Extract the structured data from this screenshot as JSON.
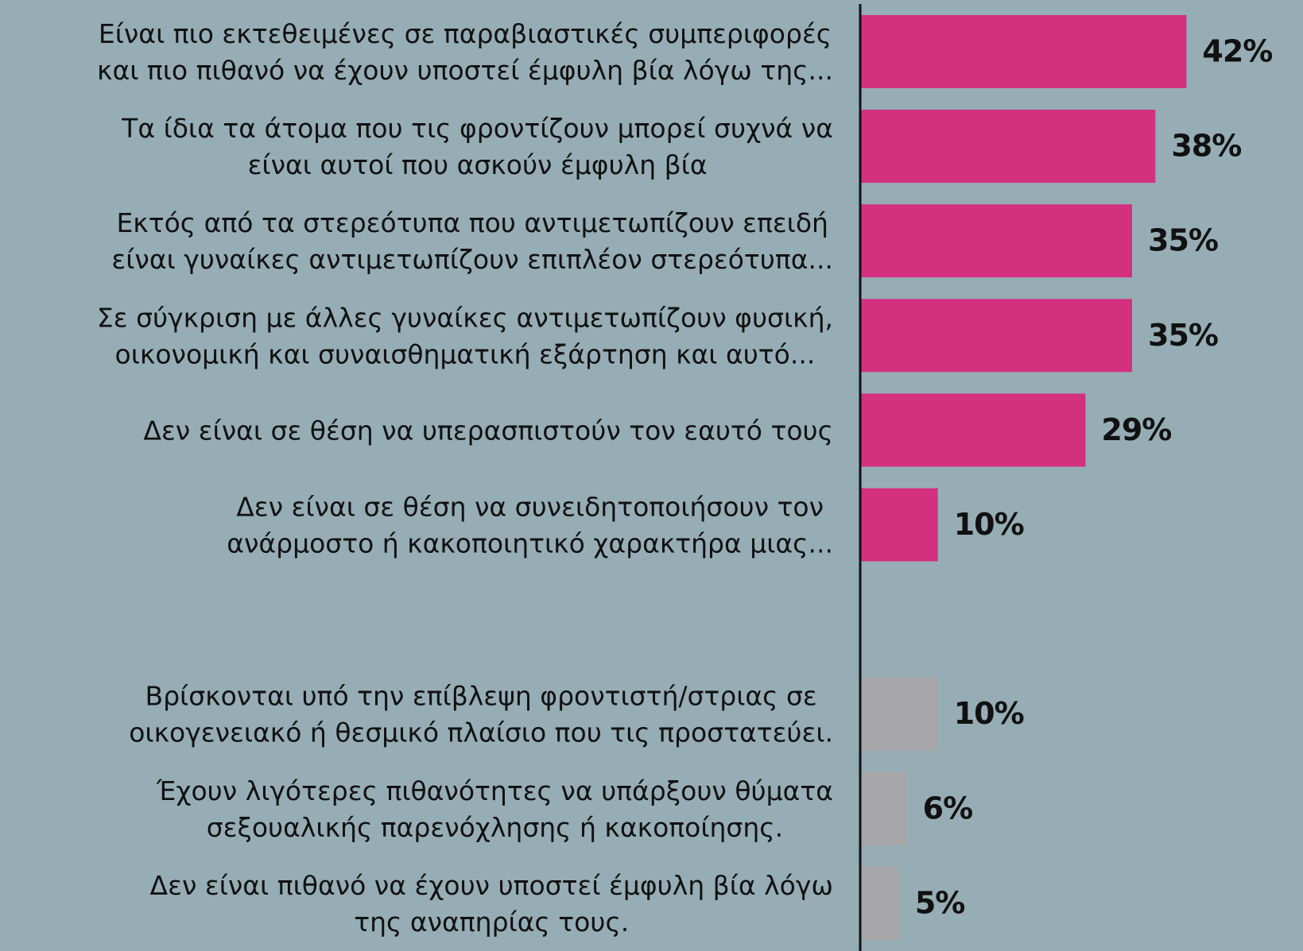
{
  "chart_data": {
    "type": "bar",
    "orientation": "horizontal",
    "categories": [
      "Είναι πιο εκτεθειμένες σε παραβιαστικές συμπεριφορές\nκαι πιο πιθανό να έχουν υποστεί έμφυλη βία λόγω της...",
      "Τα ίδια τα άτομα που τις φροντίζουν μπορεί συχνά να\nείναι αυτοί που ασκούν έμφυλη βία",
      "Εκτός από τα στερεότυπα που αντιμετωπίζουν επειδή\nείναι γυναίκες αντιμετωπίζουν επιπλέον στερεότυπα...",
      "Σε σύγκριση με άλλες γυναίκες αντιμετωπίζουν φυσική,\nοικονομική και συναισθηματική εξάρτηση και αυτό...",
      "Δεν είναι σε θέση να υπερασπιστούν τον εαυτό τους",
      "Δεν είναι σε θέση να συνειδητοποιήσουν τον\nανάρμοστο ή κακοποιητικό χαρακτήρα μιας...",
      null,
      "Βρίσκονται υπό την επίβλεψη φροντιστή/στριας σε\nοικογενειακό ή θεσμικό πλαίσιο που τις προστατεύει.",
      "Έχουν λιγότερες πιθανότητες να υπάρξουν θύματα\nσεξουαλικής παρενόχλησης ή κακοποίησης.",
      "Δεν είναι πιθανό να έχουν υποστεί έμφυλη βία λόγω\nτης αναπηρίας τους."
    ],
    "values": [
      42,
      38,
      35,
      35,
      29,
      10,
      null,
      10,
      6,
      5
    ],
    "value_labels": [
      "42%",
      "38%",
      "35%",
      "35%",
      "29%",
      "10%",
      null,
      "10%",
      "6%",
      "5%"
    ],
    "colors": [
      "#d3307f",
      "#d3307f",
      "#d3307f",
      "#d3307f",
      "#d3307f",
      "#d3307f",
      null,
      "#a6a6a8",
      "#a6a6a8",
      "#a6a6a8"
    ],
    "xlim": [
      0,
      57
    ]
  }
}
